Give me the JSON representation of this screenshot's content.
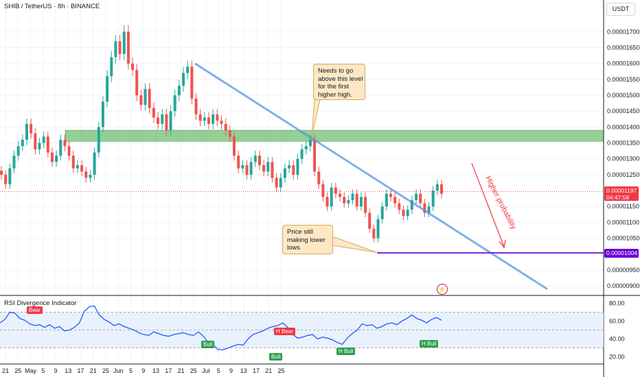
{
  "header": {
    "title": "SHIB / TetherUS · 8h · BINANCE",
    "currency_button": "USDT"
  },
  "indicator": {
    "title": "RSI Divergence Indicator"
  },
  "chart_data": {
    "type": "candlestick",
    "symbol": "SHIB / TetherUS",
    "timeframe": "8h",
    "exchange": "BINANCE",
    "price_axis": {
      "range": [
        8.7e-06,
        1.8e-05
      ],
      "ticks": [
        "0.00001700",
        "0.00001650",
        "0.00001600",
        "0.00001550",
        "0.00001500",
        "0.00001450",
        "0.00001400",
        "0.00001350",
        "0.00001300",
        "0.00001250",
        "0.00001150",
        "0.00001100",
        "0.00001050",
        "0.00000950",
        "0.00000900"
      ]
    },
    "time_axis": {
      "ticks": [
        "21",
        "25",
        "May",
        "5",
        "9",
        "13",
        "17",
        "21",
        "25",
        "Jun",
        "5",
        "9",
        "13",
        "17",
        "21",
        "25",
        "Jul",
        "5",
        "9",
        "13",
        "17",
        "21",
        "25"
      ]
    },
    "last_price": {
      "value": "0.00001197",
      "countdown": "04:47:58",
      "color": "#f23645"
    },
    "support_level": {
      "value": "0.00001004",
      "color": "#7b1fd6"
    },
    "resistance_zone": {
      "low": 1.355e-05,
      "high": 1.39e-05,
      "color": "#4caf50"
    },
    "trendline": {
      "from_price": 1.6e-05,
      "to_price": 8.9e-06,
      "color": "#4a90e2"
    },
    "annotations": [
      {
        "id": "note_top",
        "lines": [
          "Needs to go",
          "above this level",
          "for the first",
          "higher high."
        ]
      },
      {
        "id": "note_bottom",
        "lines": [
          "Price still",
          "making lower",
          "lows"
        ]
      },
      {
        "id": "arrow_label",
        "text": "Higher probability"
      }
    ],
    "price_series": [
      1.25e-05,
      1.22e-05,
      1.27e-05,
      1.31e-05,
      1.34e-05,
      1.36e-05,
      1.41e-05,
      1.38e-05,
      1.33e-05,
      1.35e-05,
      1.37e-05,
      1.32e-05,
      1.29e-05,
      1.31e-05,
      1.36e-05,
      1.34e-05,
      1.31e-05,
      1.27e-05,
      1.28e-05,
      1.26e-05,
      1.24e-05,
      1.25e-05,
      1.32e-05,
      1.4e-05,
      1.48e-05,
      1.56e-05,
      1.62e-05,
      1.67e-05,
      1.63e-05,
      1.7e-05,
      1.6e-05,
      1.58e-05,
      1.5e-05,
      1.47e-05,
      1.52e-05,
      1.46e-05,
      1.43e-05,
      1.41e-05,
      1.44e-05,
      1.39e-05,
      1.45e-05,
      1.5e-05,
      1.53e-05,
      1.57e-05,
      1.59e-05,
      1.49e-05,
      1.44e-05,
      1.42e-05,
      1.43e-05,
      1.41e-05,
      1.44e-05,
      1.42e-05,
      1.41e-05,
      1.39e-05,
      1.37e-05,
      1.31e-05,
      1.27e-05,
      1.28e-05,
      1.25e-05,
      1.29e-05,
      1.31e-05,
      1.28e-05,
      1.26e-05,
      1.29e-05,
      1.24e-05,
      1.21e-05,
      1.24e-05,
      1.27e-05,
      1.28e-05,
      1.25e-05,
      1.3e-05,
      1.33e-05,
      1.34e-05,
      1.36e-05,
      1.26e-05,
      1.22e-05,
      1.18e-05,
      1.15e-05,
      1.21e-05,
      1.19e-05,
      1.18e-05,
      1.16e-05,
      1.17e-05,
      1.19e-05,
      1.15e-05,
      1.18e-05,
      1.13e-05,
      1.08e-05,
      1.05e-05,
      1.11e-05,
      1.15e-05,
      1.19e-05,
      1.18e-05,
      1.16e-05,
      1.14e-05,
      1.12e-05,
      1.14e-05,
      1.17e-05,
      1.19e-05,
      1.16e-05,
      1.13e-05,
      1.15e-05,
      1.2e-05,
      1.22e-05,
      1.19e-05
    ],
    "rsi": {
      "levels": [
        70,
        50,
        30
      ],
      "ticks": [
        "80.00",
        "60.00",
        "40.00",
        "20.00"
      ],
      "range": [
        12,
        88
      ],
      "series": [
        58,
        62,
        70,
        69,
        63,
        61,
        57,
        55,
        56,
        53,
        56,
        52,
        54,
        49,
        50,
        53,
        58,
        71,
        76,
        77,
        67,
        62,
        59,
        55,
        57,
        54,
        52,
        50,
        47,
        45,
        44,
        48,
        46,
        44,
        43,
        45,
        46,
        47,
        45,
        44,
        48,
        43,
        36,
        33,
        28,
        28,
        30,
        32,
        34,
        33,
        40,
        45,
        47,
        49,
        52,
        54,
        55,
        58,
        53,
        45,
        41,
        42,
        44,
        45,
        40,
        42,
        41,
        39,
        36,
        34,
        41,
        46,
        50,
        57,
        55,
        56,
        52,
        54,
        57,
        58,
        56,
        60,
        63,
        67,
        63,
        61,
        58,
        62,
        64,
        61
      ],
      "color": "#2962ff",
      "signals": [
        {
          "label": "Bear",
          "type": "bear"
        },
        {
          "label": "Bull",
          "type": "bull"
        },
        {
          "label": "Bull",
          "type": "bull"
        },
        {
          "label": "H Bear",
          "type": "bear"
        },
        {
          "label": "H Bull",
          "type": "bull"
        },
        {
          "label": "H Bull",
          "type": "bull"
        }
      ]
    }
  },
  "colors": {
    "bull": "#26a69a",
    "bear": "#ef5350",
    "grid": "#f0f3fa"
  }
}
